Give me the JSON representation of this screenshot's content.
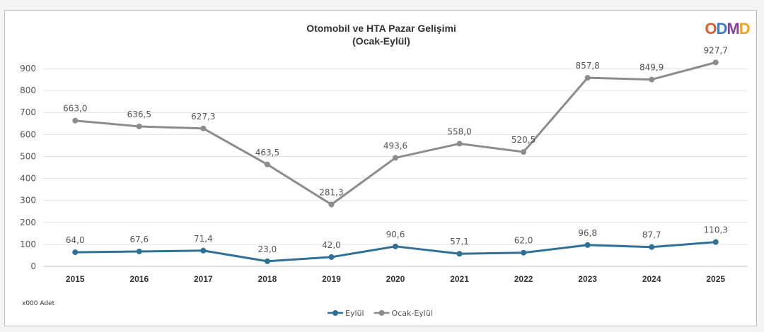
{
  "chart_data": {
    "type": "line",
    "title": "Otomobil ve HTA Pazar Gelişimi",
    "subtitle": "(Ocak-Eylül)",
    "categories": [
      "2015",
      "2016",
      "2017",
      "2018",
      "2019",
      "2020",
      "2021",
      "2022",
      "2023",
      "2024",
      "2025"
    ],
    "series": [
      {
        "name": "Eylül",
        "color": "#2e7096",
        "values": [
          64.0,
          67.6,
          71.4,
          23.0,
          42.0,
          90.6,
          57.1,
          62.0,
          96.8,
          87.7,
          110.3
        ],
        "labels": [
          "64,0",
          "67,6",
          "71,4",
          "23,0",
          "42,0",
          "90,6",
          "57,1",
          "62,0",
          "96,8",
          "87,7",
          "110,3"
        ]
      },
      {
        "name": "Ocak-Eylül",
        "color": "#8c8c8c",
        "values": [
          663.0,
          636.5,
          627.3,
          463.5,
          281.3,
          493.6,
          558.0,
          520.5,
          857.8,
          849.9,
          927.7
        ],
        "labels": [
          "663,0",
          "636,5",
          "627,3",
          "463,5",
          "281,3",
          "493,6",
          "558,0",
          "520,5",
          "857,8",
          "849,9",
          "927,7"
        ]
      }
    ],
    "ylim": [
      0,
      900
    ],
    "yticks": [
      0,
      100,
      200,
      300,
      400,
      500,
      600,
      700,
      800,
      900
    ],
    "grid": true,
    "legend": "bottom-center",
    "unit_note": "x000 Adet"
  },
  "logo": {
    "text": "ODMD",
    "letter_colors": [
      "#e05a2b",
      "#3d7cc9",
      "#8a3fa0",
      "#f2a51c"
    ]
  }
}
